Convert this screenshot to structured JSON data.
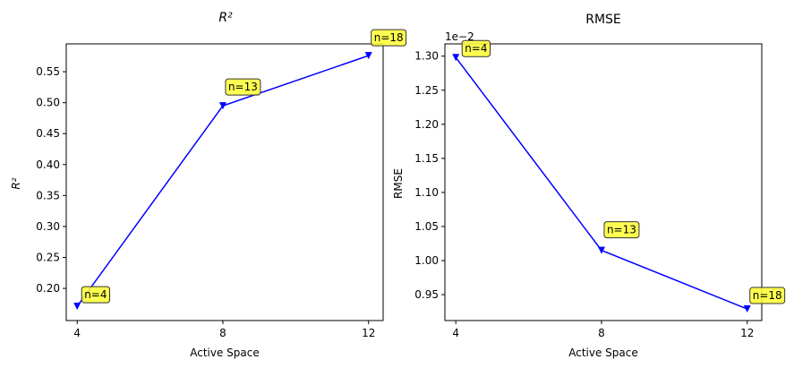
{
  "chart_data": [
    {
      "type": "line",
      "title": "R²",
      "title_italic_symbol": true,
      "xlabel": "Active Space",
      "ylabel": "R²",
      "x": [
        4,
        8,
        12
      ],
      "xticks": [
        "4",
        "8",
        "12"
      ],
      "xlim": [
        3.7,
        12.4
      ],
      "ylim": [
        0.148,
        0.595
      ],
      "yticks": [
        "0.20",
        "0.25",
        "0.30",
        "0.35",
        "0.40",
        "0.45",
        "0.50",
        "0.55"
      ],
      "ytick_values": [
        0.2,
        0.25,
        0.3,
        0.35,
        0.4,
        0.45,
        0.5,
        0.55
      ],
      "series": [
        {
          "values": [
            0.171,
            0.495,
            0.576
          ],
          "color": "#0000ff",
          "marker": "triangle-down"
        }
      ],
      "annotations": [
        "n=4",
        "n=13",
        "n=18"
      ],
      "annotation_box_color": "#ffff33",
      "grid": false
    },
    {
      "type": "line",
      "title": "RMSE",
      "xlabel": "Active Space",
      "ylabel": "RMSE",
      "y_offset_label": "1e−2",
      "x": [
        4,
        8,
        12
      ],
      "xticks": [
        "4",
        "8",
        "12"
      ],
      "xlim": [
        3.7,
        12.4
      ],
      "ylim": [
        0.912,
        1.318
      ],
      "yticks": [
        "0.95",
        "1.00",
        "1.05",
        "1.10",
        "1.15",
        "1.20",
        "1.25",
        "1.30"
      ],
      "ytick_values": [
        0.95,
        1.0,
        1.05,
        1.1,
        1.15,
        1.2,
        1.25,
        1.3
      ],
      "series": [
        {
          "values": [
            1.298,
            1.015,
            0.929
          ],
          "color": "#0000ff",
          "marker": "triangle-down"
        }
      ],
      "annotations": [
        "n=4",
        "n=13",
        "n=18"
      ],
      "annotation_box_color": "#ffff33",
      "grid": false
    }
  ]
}
